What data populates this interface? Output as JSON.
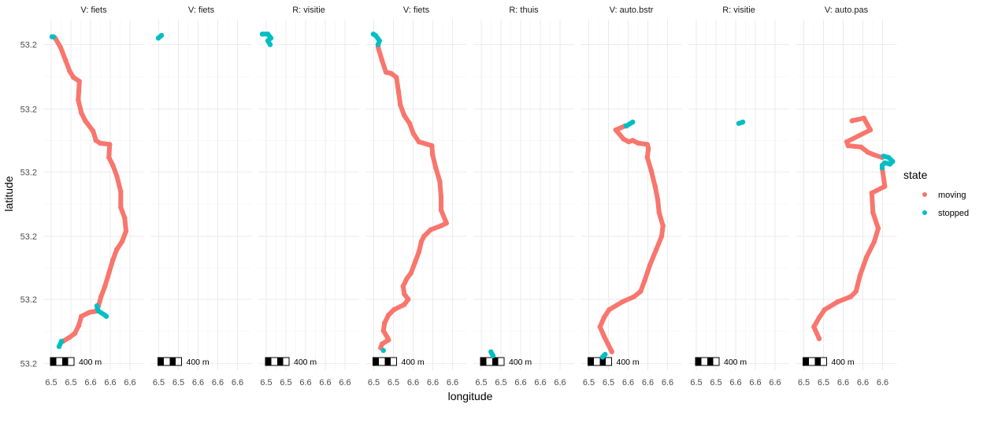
{
  "chart_data": {
    "type": "scatter",
    "xlabel": "longitude",
    "ylabel": "latitude",
    "xlim": [
      6.512,
      6.6144
    ],
    "ylim": [
      53.2003,
      53.227
    ],
    "x_ticks": [
      6.52,
      6.54,
      6.56,
      6.58,
      6.6
    ],
    "x_tick_labels": [
      "6.5",
      "6.5",
      "6.6",
      "6.6",
      "6.6"
    ],
    "y_ticks": [
      53.2251,
      53.2202,
      53.2154,
      53.2105,
      53.2057,
      53.2008
    ],
    "y_tick_labels": [
      "53.2",
      "53.2",
      "53.2",
      "53.2",
      "53.2",
      "53.2"
    ],
    "grid": true,
    "scalebar_label": "400 m",
    "legend": {
      "title": "state",
      "placement": "right",
      "entries": [
        {
          "label": "moving",
          "color": "#F8766D"
        },
        {
          "label": "stopped",
          "color": "#00BFC4"
        }
      ]
    },
    "facets": [
      {
        "label": "V: fiets",
        "moving": [
          [
            [
              6.524,
              53.2256
            ],
            [
              6.5294,
              53.2249
            ],
            [
              6.5346,
              53.2239
            ],
            [
              6.5386,
              53.2231
            ],
            [
              6.5426,
              53.2226
            ],
            [
              6.5486,
              53.2223
            ],
            [
              6.548,
              53.2215
            ],
            [
              6.5474,
              53.2209
            ],
            [
              6.5506,
              53.2199
            ],
            [
              6.5546,
              53.2193
            ],
            [
              6.5626,
              53.2185
            ],
            [
              6.5654,
              53.2178
            ],
            [
              6.5694,
              53.2176
            ],
            [
              6.5794,
              53.2175
            ],
            [
              6.5786,
              53.2165
            ],
            [
              6.5826,
              53.2159
            ],
            [
              6.5866,
              53.2151
            ],
            [
              6.5906,
              53.2139
            ],
            [
              6.5906,
              53.2127
            ],
            [
              6.5946,
              53.2119
            ],
            [
              6.596,
              53.2109
            ],
            [
              6.592,
              53.2101
            ],
            [
              6.5866,
              53.2095
            ],
            [
              6.5826,
              53.2087
            ],
            [
              6.5786,
              53.2077
            ],
            [
              6.5746,
              53.2067
            ],
            [
              6.5706,
              53.2059
            ],
            [
              6.568,
              53.2052
            ],
            [
              6.5654,
              53.2048
            ],
            [
              6.5586,
              53.2047
            ],
            [
              6.5506,
              53.2044
            ],
            [
              6.548,
              53.2037
            ],
            [
              6.544,
              53.2031
            ],
            [
              6.5386,
              53.2028
            ],
            [
              6.532,
              53.2025
            ]
          ]
        ],
        "stopped": [
          [
            [
              6.5208,
              53.2257
            ],
            [
              6.5224,
              53.2257
            ]
          ],
          [
            [
              6.5664,
              53.2052
            ],
            [
              6.568,
              53.2048
            ],
            [
              6.5744,
              53.2045
            ],
            [
              6.576,
              53.2044
            ]
          ],
          [
            [
              6.5304,
              53.2025
            ],
            [
              6.528,
              53.2021
            ]
          ]
        ]
      },
      {
        "label": "V: fiets",
        "moving": [],
        "stopped": [
          [
            [
              6.5196,
              53.2256
            ],
            [
              6.5228,
              53.2258
            ]
          ]
        ]
      },
      {
        "label": "R: visitie",
        "moving": [],
        "stopped": [
          [
            [
              6.516,
              53.2259
            ],
            [
              6.5216,
              53.2259
            ],
            [
              6.5248,
              53.2256
            ],
            [
              6.5216,
              53.2254
            ],
            [
              6.524,
              53.2251
            ]
          ]
        ]
      },
      {
        "label": "V: fiets",
        "moving": [
          [
            [
              6.5244,
              53.2251
            ],
            [
              6.5244,
              53.2249
            ],
            [
              6.5284,
              53.2239
            ],
            [
              6.5324,
              53.223
            ],
            [
              6.5378,
              53.2229
            ],
            [
              6.543,
              53.2226
            ],
            [
              6.5452,
              53.2215
            ],
            [
              6.547,
              53.2205
            ],
            [
              6.551,
              53.2197
            ],
            [
              6.5564,
              53.2191
            ],
            [
              6.5604,
              53.2183
            ],
            [
              6.5658,
              53.2177
            ],
            [
              6.579,
              53.2174
            ],
            [
              6.5798,
              53.2167
            ],
            [
              6.583,
              53.2157
            ],
            [
              6.587,
              53.2147
            ],
            [
              6.5884,
              53.2135
            ],
            [
              6.5884,
              53.2125
            ],
            [
              6.5938,
              53.2115
            ],
            [
              6.5884,
              53.2113
            ],
            [
              6.5778,
              53.211
            ],
            [
              6.571,
              53.2105
            ],
            [
              6.5684,
              53.2101
            ],
            [
              6.5658,
              53.2093
            ],
            [
              6.5618,
              53.2085
            ],
            [
              6.5578,
              53.2077
            ],
            [
              6.5538,
              53.2073
            ],
            [
              6.5498,
              53.2067
            ],
            [
              6.551,
              53.2061
            ],
            [
              6.555,
              53.2057
            ],
            [
              6.551,
              53.2053
            ],
            [
              6.5404,
              53.2049
            ],
            [
              6.535,
              53.2045
            ],
            [
              6.531,
              53.2039
            ],
            [
              6.5298,
              53.2033
            ],
            [
              6.5338,
              53.2028
            ],
            [
              6.535,
              53.2026
            ],
            [
              6.5284,
              53.2023
            ],
            [
              6.527,
              53.202
            ]
          ]
        ],
        "stopped": [
          [
            [
              6.5196,
              53.2259
            ],
            [
              6.5218,
              53.2258
            ],
            [
              6.5258,
              53.2254
            ],
            [
              6.5244,
              53.2251
            ]
          ],
          [
            [
              6.5298,
              53.2018
            ]
          ]
        ]
      },
      {
        "label": "R: thuis",
        "moving": [],
        "stopped": [
          [
            [
              6.5298,
              53.2017
            ],
            [
              6.5312,
              53.2015
            ],
            [
              6.532,
              53.2014
            ]
          ]
        ]
      },
      {
        "label": "V: auto.bstr",
        "moving": [
          [
            [
              6.5566,
              53.2189
            ],
            [
              6.5474,
              53.2186
            ],
            [
              6.5554,
              53.2179
            ],
            [
              6.5606,
              53.2177
            ],
            [
              6.5646,
              53.2178
            ],
            [
              6.57,
              53.2176
            ],
            [
              6.5794,
              53.2175
            ],
            [
              6.5806,
              53.2172
            ],
            [
              6.5794,
              53.2165
            ],
            [
              6.5834,
              53.2155
            ],
            [
              6.5874,
              53.2143
            ],
            [
              6.59,
              53.2133
            ],
            [
              6.5914,
              53.2123
            ],
            [
              6.5954,
              53.2113
            ],
            [
              6.594,
              53.2105
            ],
            [
              6.5886,
              53.2095
            ],
            [
              6.582,
              53.2083
            ],
            [
              6.5766,
              53.2071
            ],
            [
              6.5726,
              53.2063
            ],
            [
              6.566,
              53.2059
            ],
            [
              6.554,
              53.2055
            ],
            [
              6.5406,
              53.2049
            ],
            [
              6.5354,
              53.2043
            ],
            [
              6.5314,
              53.2036
            ],
            [
              6.5354,
              53.2029
            ],
            [
              6.5394,
              53.2023
            ],
            [
              6.5434,
              53.2017
            ]
          ]
        ],
        "stopped": [
          [
            [
              6.5646,
              53.2192
            ],
            [
              6.558,
              53.2189
            ]
          ],
          [
            [
              6.5366,
              53.2015
            ],
            [
              6.534,
              53.2013
            ]
          ]
        ]
      },
      {
        "label": "R: visitie",
        "moving": [],
        "stopped": [
          [
            [
              6.5632,
              53.2191
            ],
            [
              6.5672,
              53.2192
            ]
          ]
        ]
      },
      {
        "label": "V: auto.pas",
        "moving": [
          [
            [
              6.569,
              53.2193
            ],
            [
              6.581,
              53.2195
            ],
            [
              6.5876,
              53.2186
            ],
            [
              6.5636,
              53.2177
            ],
            [
              6.565,
              53.2174
            ],
            [
              6.5782,
              53.2173
            ],
            [
              6.585,
              53.2169
            ],
            [
              6.5916,
              53.2167
            ],
            [
              6.5996,
              53.2165
            ]
          ],
          [
            [
              6.5996,
              53.2157
            ],
            [
              6.6022,
              53.2143
            ],
            [
              6.589,
              53.2138
            ],
            [
              6.5902,
              53.2123
            ],
            [
              6.5956,
              53.2111
            ],
            [
              6.5916,
              53.2101
            ],
            [
              6.5836,
              53.2089
            ],
            [
              6.577,
              53.2075
            ],
            [
              6.573,
              53.2063
            ],
            [
              6.5676,
              53.2059
            ],
            [
              6.5542,
              53.2055
            ],
            [
              6.541,
              53.2049
            ],
            [
              6.5356,
              53.2043
            ],
            [
              6.5302,
              53.2036
            ],
            [
              6.5356,
              53.2027
            ]
          ]
        ],
        "stopped": [
          [
            [
              6.601,
              53.2166
            ],
            [
              6.6062,
              53.2165
            ],
            [
              6.6102,
              53.2162
            ],
            [
              6.6076,
              53.216
            ],
            [
              6.6022,
              53.2161
            ],
            [
              6.5996,
              53.2159
            ],
            [
              6.5996,
              53.2157
            ]
          ]
        ]
      }
    ]
  }
}
